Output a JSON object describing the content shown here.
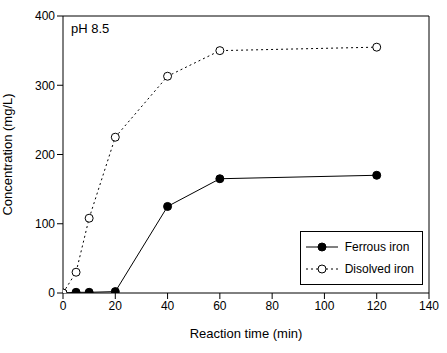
{
  "chart_data": {
    "type": "line",
    "annotation": "pH 8.5",
    "x_label": "Reaction time (min)",
    "y_label": "Concentration (mg/L)",
    "x": [
      0,
      5,
      10,
      20,
      40,
      60,
      120
    ],
    "series": [
      {
        "name": "Ferrous iron",
        "color": "#000000",
        "marker": "filled circle",
        "line_style": "solid",
        "values": [
          0,
          1,
          1,
          2,
          125,
          165,
          170
        ]
      },
      {
        "name": "Disolved iron",
        "color": "#000000",
        "marker": "open circle",
        "line_style": "dotted",
        "values": [
          0,
          30,
          108,
          225,
          313,
          350,
          355
        ]
      }
    ],
    "xlim": [
      0,
      140
    ],
    "xticks": [
      0,
      20,
      40,
      60,
      80,
      100,
      120,
      140
    ],
    "ylim": [
      0,
      400
    ],
    "yticks": [
      0,
      100,
      200,
      300,
      400
    ],
    "legend": "lower right",
    "grid": false
  }
}
